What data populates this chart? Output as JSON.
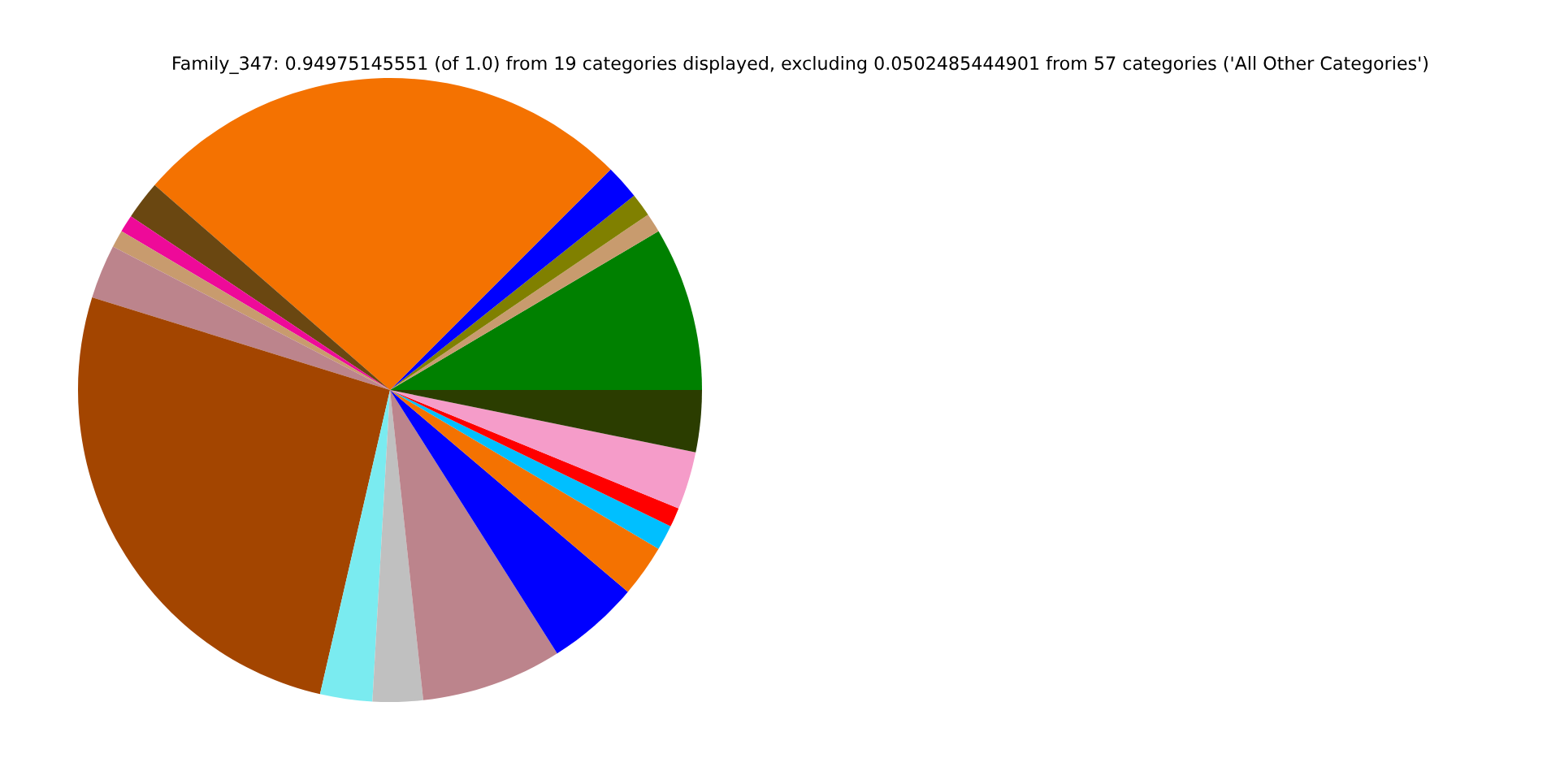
{
  "chart_data": {
    "type": "pie",
    "title": "Family_347: 0.94975145551 (of 1.0) from 19 categories displayed, excluding 0.0502485444901 from 57 categories ('All Other Categories')",
    "categories": [
      null,
      null,
      null,
      null,
      null,
      null,
      null,
      null,
      null,
      null,
      null,
      null,
      null,
      null,
      null,
      null,
      null,
      null,
      null
    ],
    "values": [
      8.5,
      1.0,
      1.2,
      1.8,
      26.1,
      2.0,
      0.9,
      0.9,
      2.8,
      26.2,
      2.7,
      2.6,
      7.3,
      4.8,
      2.7,
      1.3,
      1.0,
      3.0,
      3.2
    ],
    "colors": [
      "#008000",
      "#c89b6e",
      "#808000",
      "#0000ff",
      "#f47201",
      "#6a4711",
      "#ee0a99",
      "#c89b6e",
      "#bc848c",
      "#a34500",
      "#7aebf0",
      "#c0c0c0",
      "#bc848c",
      "#0000ff",
      "#f47201",
      "#00bfff",
      "#ff0000",
      "#f59cc9",
      "#2b3d00"
    ]
  }
}
